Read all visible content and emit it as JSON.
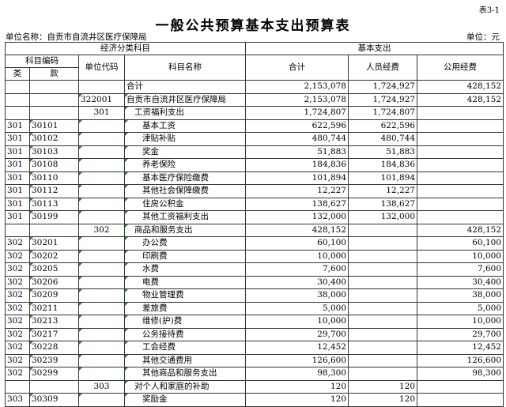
{
  "tag": "表3-1",
  "title": "一般公共预算基本支出预算表",
  "unit_name": "单位名称：自贡市自流井区医疗保障局",
  "unit": "单位：元",
  "headers": {
    "econ": "经济分类科目",
    "basic": "基本支出",
    "code": "科目编码",
    "lei": "类",
    "kuan": "款",
    "unit_code": "单位代码",
    "subject": "科目名称",
    "total": "合计",
    "personnel": "人员经费",
    "public": "公用经费"
  },
  "marker_color": "#1a8a1a",
  "rows": [
    {
      "lei": "",
      "kuan": "",
      "ucode": "",
      "name": "合计",
      "level": 0,
      "total": "2,153,078",
      "personnel": "1,724,927",
      "public": "428,152"
    },
    {
      "lei": "",
      "kuan": "",
      "ucode": "322001",
      "name": "自贡市自流井区医疗保障局",
      "level": 0,
      "total": "2,153,078",
      "personnel": "1,724,927",
      "public": "428,152"
    },
    {
      "lei": "",
      "kuan": "",
      "ucode": "301",
      "name": "工资福利支出",
      "level": 1,
      "total": "1,724,807",
      "personnel": "1,724,807",
      "public": ""
    },
    {
      "lei": "301",
      "kuan": "30101",
      "ucode": "",
      "name": "基本工资",
      "level": 2,
      "total": "622,596",
      "personnel": "622,596",
      "public": ""
    },
    {
      "lei": "301",
      "kuan": "30102",
      "ucode": "",
      "name": "津贴补贴",
      "level": 2,
      "total": "480,744",
      "personnel": "480,744",
      "public": ""
    },
    {
      "lei": "301",
      "kuan": "30103",
      "ucode": "",
      "name": "奖金",
      "level": 2,
      "total": "51,883",
      "personnel": "51,883",
      "public": ""
    },
    {
      "lei": "301",
      "kuan": "30108",
      "ucode": "",
      "name": "养老保险",
      "level": 2,
      "total": "184,836",
      "personnel": "184,836",
      "public": ""
    },
    {
      "lei": "301",
      "kuan": "30110",
      "ucode": "",
      "name": "基本医疗保险缴费",
      "level": 2,
      "total": "101,894",
      "personnel": "101,894",
      "public": ""
    },
    {
      "lei": "301",
      "kuan": "30112",
      "ucode": "",
      "name": "其他社会保障缴费",
      "level": 2,
      "total": "12,227",
      "personnel": "12,227",
      "public": ""
    },
    {
      "lei": "301",
      "kuan": "30113",
      "ucode": "",
      "name": "住房公积金",
      "level": 2,
      "total": "138,627",
      "personnel": "138,627",
      "public": ""
    },
    {
      "lei": "301",
      "kuan": "30199",
      "ucode": "",
      "name": "其他工资福利支出",
      "level": 2,
      "total": "132,000",
      "personnel": "132,000",
      "public": ""
    },
    {
      "lei": "",
      "kuan": "",
      "ucode": "302",
      "name": "商品和服务支出",
      "level": 1,
      "total": "428,152",
      "personnel": "",
      "public": "428,152"
    },
    {
      "lei": "302",
      "kuan": "30201",
      "ucode": "",
      "name": "办公费",
      "level": 2,
      "total": "60,100",
      "personnel": "",
      "public": "60,100"
    },
    {
      "lei": "302",
      "kuan": "30202",
      "ucode": "",
      "name": "印刷费",
      "level": 2,
      "total": "10,000",
      "personnel": "",
      "public": "10,000"
    },
    {
      "lei": "302",
      "kuan": "30205",
      "ucode": "",
      "name": "水费",
      "level": 2,
      "total": "7,600",
      "personnel": "",
      "public": "7,600"
    },
    {
      "lei": "302",
      "kuan": "30206",
      "ucode": "",
      "name": "电费",
      "level": 2,
      "total": "30,400",
      "personnel": "",
      "public": "30,400"
    },
    {
      "lei": "302",
      "kuan": "30209",
      "ucode": "",
      "name": "物业管理费",
      "level": 2,
      "total": "38,000",
      "personnel": "",
      "public": "38,000"
    },
    {
      "lei": "302",
      "kuan": "30211",
      "ucode": "",
      "name": "差旅费",
      "level": 2,
      "total": "5,000",
      "personnel": "",
      "public": "5,000"
    },
    {
      "lei": "302",
      "kuan": "30213",
      "ucode": "",
      "name": "维修(护)费",
      "level": 2,
      "total": "10,000",
      "personnel": "",
      "public": "10,000"
    },
    {
      "lei": "302",
      "kuan": "30217",
      "ucode": "",
      "name": "公务接待费",
      "level": 2,
      "total": "29,700",
      "personnel": "",
      "public": "29,700"
    },
    {
      "lei": "302",
      "kuan": "30228",
      "ucode": "",
      "name": "工会经费",
      "level": 2,
      "total": "12,452",
      "personnel": "",
      "public": "12,452"
    },
    {
      "lei": "302",
      "kuan": "30239",
      "ucode": "",
      "name": "其他交通费用",
      "level": 2,
      "total": "126,600",
      "personnel": "",
      "public": "126,600"
    },
    {
      "lei": "302",
      "kuan": "30299",
      "ucode": "",
      "name": "其他商品和服务支出",
      "level": 2,
      "total": "98,300",
      "personnel": "",
      "public": "98,300"
    },
    {
      "lei": "",
      "kuan": "",
      "ucode": "303",
      "name": "对个人和家庭的补助",
      "level": 1,
      "total": "120",
      "personnel": "120",
      "public": ""
    },
    {
      "lei": "303",
      "kuan": "30309",
      "ucode": "",
      "name": "奖励金",
      "level": 2,
      "total": "120",
      "personnel": "120",
      "public": ""
    }
  ]
}
